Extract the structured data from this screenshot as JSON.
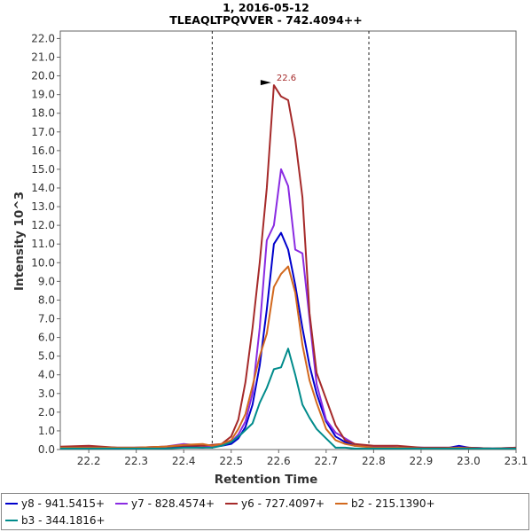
{
  "chart_data": {
    "type": "line",
    "title": "1, 2016-05-12",
    "subtitle": "TLEAQLTPQVVER - 742.4094++",
    "xlabel": "Retention Time",
    "ylabel": "Intensity 10^3",
    "xlim": [
      22.14,
      23.1
    ],
    "ylim": [
      0,
      22.4
    ],
    "x_ticks": [
      "22.2",
      "22.3",
      "22.4",
      "22.5",
      "22.6",
      "22.7",
      "22.8",
      "22.9",
      "23.0",
      "23.1"
    ],
    "y_ticks": [
      "0.0",
      "1.0",
      "2.0",
      "3.0",
      "4.0",
      "5.0",
      "6.0",
      "7.0",
      "8.0",
      "9.0",
      "10.0",
      "11.0",
      "12.0",
      "13.0",
      "14.0",
      "15.0",
      "16.0",
      "17.0",
      "18.0",
      "19.0",
      "20.0",
      "21.0",
      "22.0"
    ],
    "grid": false,
    "legend_position": "bottom",
    "integration_bounds": [
      22.46,
      22.79
    ],
    "peak_annotation": {
      "label": "22.6",
      "x": 22.588,
      "y": 19.5,
      "color": "#a52a2a"
    },
    "series": [
      {
        "name": "y8 - 941.5415+",
        "color": "#0000cc",
        "x": [
          22.14,
          22.2,
          22.26,
          22.3,
          22.36,
          22.4,
          22.44,
          22.46,
          22.48,
          22.5,
          22.515,
          22.53,
          22.545,
          22.56,
          22.575,
          22.59,
          22.605,
          22.62,
          22.635,
          22.65,
          22.665,
          22.68,
          22.7,
          22.72,
          22.74,
          22.76,
          22.78,
          22.8,
          22.85,
          22.9,
          22.95,
          22.98,
          23.0,
          23.05,
          23.1
        ],
        "y": [
          0.1,
          0.1,
          0.05,
          0.1,
          0.05,
          0.15,
          0.1,
          0.15,
          0.2,
          0.3,
          0.6,
          1.2,
          2.4,
          4.5,
          7.5,
          11.0,
          11.6,
          10.7,
          8.8,
          6.5,
          4.5,
          3.0,
          1.5,
          0.7,
          0.4,
          0.2,
          0.2,
          0.15,
          0.1,
          0.1,
          0.05,
          0.2,
          0.1,
          0.05,
          0.05
        ]
      },
      {
        "name": "y7 - 828.4574+",
        "color": "#8a2be2",
        "x": [
          22.14,
          22.2,
          22.26,
          22.3,
          22.36,
          22.4,
          22.44,
          22.46,
          22.48,
          22.5,
          22.515,
          22.53,
          22.545,
          22.56,
          22.575,
          22.59,
          22.605,
          22.62,
          22.635,
          22.65,
          22.665,
          22.68,
          22.7,
          22.72,
          22.74,
          22.76,
          22.78,
          22.8,
          22.85,
          22.9,
          22.95,
          22.98,
          23.0,
          23.05,
          23.1
        ],
        "y": [
          0.1,
          0.15,
          0.1,
          0.1,
          0.15,
          0.3,
          0.2,
          0.15,
          0.25,
          0.4,
          0.8,
          1.5,
          3.0,
          6.5,
          11.2,
          12.0,
          15.0,
          14.1,
          10.7,
          10.5,
          7.0,
          3.5,
          1.6,
          0.9,
          0.6,
          0.3,
          0.2,
          0.15,
          0.1,
          0.1,
          0.1,
          0.1,
          0.1,
          0.05,
          0.1
        ]
      },
      {
        "name": "y6 - 727.4097+",
        "color": "#a52a2a",
        "x": [
          22.14,
          22.2,
          22.26,
          22.3,
          22.36,
          22.4,
          22.44,
          22.46,
          22.48,
          22.5,
          22.515,
          22.53,
          22.545,
          22.56,
          22.575,
          22.59,
          22.605,
          22.62,
          22.635,
          22.65,
          22.665,
          22.68,
          22.7,
          22.72,
          22.74,
          22.76,
          22.78,
          22.8,
          22.85,
          22.9,
          22.95,
          22.98,
          23.0,
          23.05,
          23.1
        ],
        "y": [
          0.15,
          0.2,
          0.1,
          0.1,
          0.15,
          0.2,
          0.2,
          0.25,
          0.3,
          0.7,
          1.6,
          3.6,
          6.5,
          10.0,
          14.0,
          19.5,
          18.9,
          18.7,
          16.6,
          13.5,
          7.3,
          4.1,
          2.7,
          1.3,
          0.5,
          0.3,
          0.25,
          0.2,
          0.2,
          0.1,
          0.1,
          0.1,
          0.1,
          0.05,
          0.1
        ]
      },
      {
        "name": "b2 - 215.1390+",
        "color": "#d2691e",
        "x": [
          22.14,
          22.2,
          22.26,
          22.3,
          22.36,
          22.4,
          22.44,
          22.46,
          22.48,
          22.5,
          22.515,
          22.53,
          22.545,
          22.56,
          22.575,
          22.59,
          22.605,
          22.62,
          22.635,
          22.65,
          22.665,
          22.68,
          22.7,
          22.72,
          22.74,
          22.76,
          22.78,
          22.8,
          22.85,
          22.9,
          22.95,
          22.98,
          23.0,
          23.05,
          23.1
        ],
        "y": [
          0.1,
          0.1,
          0.1,
          0.1,
          0.15,
          0.25,
          0.3,
          0.2,
          0.3,
          0.5,
          1.1,
          1.9,
          3.4,
          5.0,
          6.2,
          8.7,
          9.4,
          9.8,
          8.4,
          5.6,
          3.7,
          2.5,
          1.1,
          0.5,
          0.3,
          0.2,
          0.15,
          0.1,
          0.1,
          0.05,
          0.05,
          0.1,
          0.05,
          0.05,
          0.05
        ]
      },
      {
        "name": "b3 - 344.1816+",
        "color": "#008b8b",
        "x": [
          22.14,
          22.2,
          22.26,
          22.3,
          22.36,
          22.4,
          22.44,
          22.46,
          22.48,
          22.5,
          22.52,
          22.545,
          22.56,
          22.575,
          22.59,
          22.605,
          22.62,
          22.635,
          22.65,
          22.665,
          22.68,
          22.7,
          22.72,
          22.74,
          22.76,
          22.78,
          22.8,
          22.85,
          22.9,
          22.95,
          22.98,
          23.0,
          23.05,
          23.1
        ],
        "y": [
          0.05,
          0.05,
          0.05,
          0.05,
          0.05,
          0.1,
          0.1,
          0.1,
          0.2,
          0.4,
          0.8,
          1.4,
          2.5,
          3.3,
          4.3,
          4.4,
          5.4,
          4.0,
          2.4,
          1.7,
          1.1,
          0.6,
          0.1,
          0.1,
          0.05,
          0.05,
          0.05,
          0.05,
          0.05,
          0.05,
          0.05,
          0.05,
          0.05,
          0.05
        ]
      }
    ]
  }
}
